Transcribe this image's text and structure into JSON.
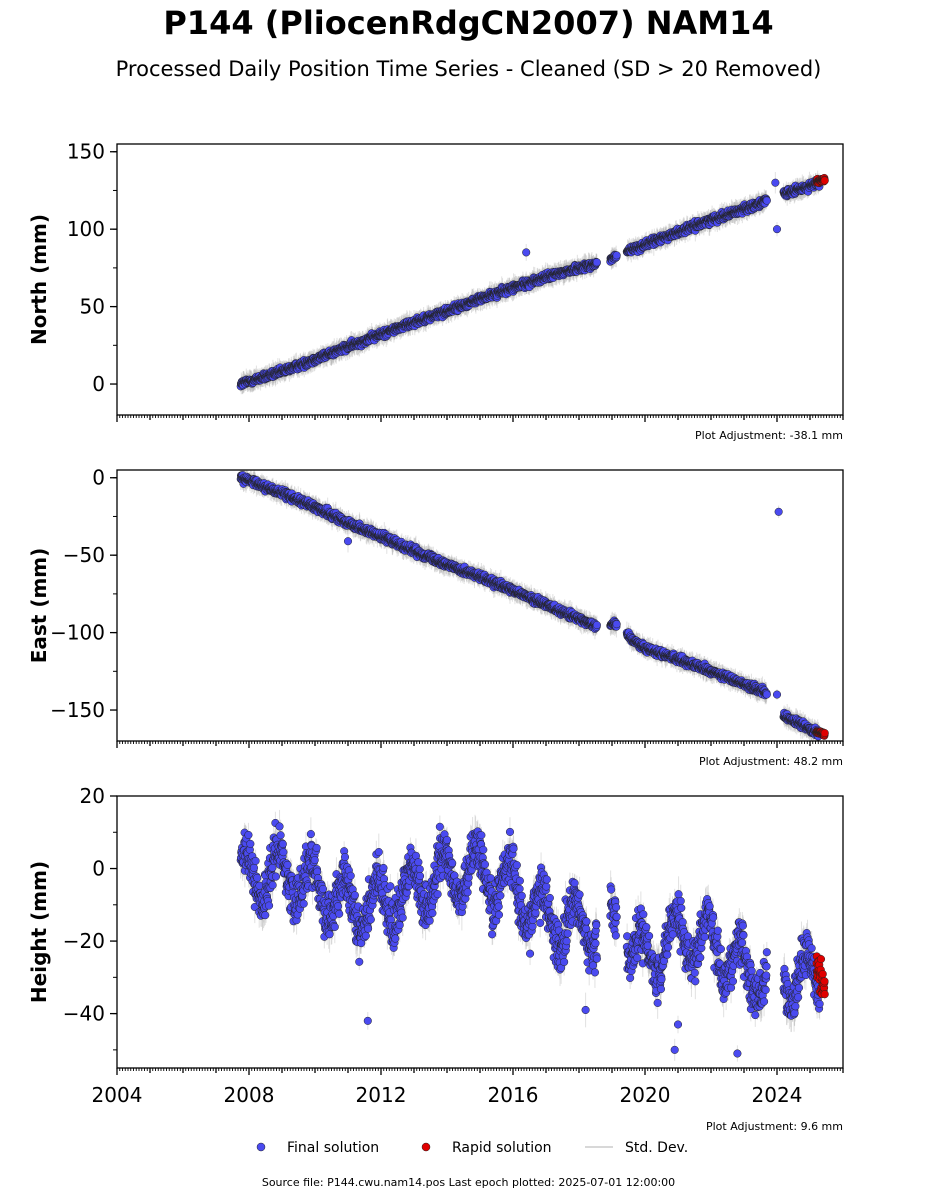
{
  "page": {
    "title": "P144 (PliocenRdgCN2007) NAM14",
    "subtitle": "Processed Daily Position Time Series - Cleaned (SD > 20 Removed)",
    "footer": "Source file: P144.cwu.nam14.pos  Last epoch plotted: 2025-07-01 12:00:00"
  },
  "legend": {
    "final": "Final solution",
    "rapid": "Rapid solution",
    "std": "Std. Dev."
  },
  "colors": {
    "final": "#4a4af0",
    "rapid": "#e00000",
    "std": "#aaaaaa"
  },
  "chart_data": [
    {
      "type": "scatter",
      "ylabel": "North (mm)",
      "xlim": [
        2004,
        2026
      ],
      "ylim": [
        -20,
        155
      ],
      "yticks": [
        0,
        50,
        100,
        150
      ],
      "xticks": [
        2004,
        2008,
        2012,
        2016,
        2020,
        2024
      ],
      "show_xtick_labels": false,
      "adjustment": "Plot Adjustment: -38.1 mm",
      "series": [
        {
          "kind": "final",
          "trend": [
            [
              2007.75,
              0
            ],
            [
              2009,
              8
            ],
            [
              2010,
              16
            ],
            [
              2011,
              24
            ],
            [
              2012,
              32
            ],
            [
              2013,
              40
            ],
            [
              2014,
              47
            ],
            [
              2015,
              55
            ],
            [
              2016,
              62
            ],
            [
              2017,
              69
            ],
            [
              2018,
              75
            ],
            [
              2018.8,
              79
            ],
            [
              2019.5,
              86
            ],
            [
              2020,
              90
            ],
            [
              2021,
              98
            ],
            [
              2022,
              106
            ],
            [
              2023,
              113
            ],
            [
              2024,
              121
            ],
            [
              2025.3,
              130
            ]
          ],
          "gaps": [
            [
              2018.55,
              2018.95
            ],
            [
              2019.15,
              2019.45
            ],
            [
              2023.7,
              2024.2
            ]
          ],
          "scatter": 1.6,
          "outliers": [
            [
              2016.4,
              85
            ],
            [
              2024.0,
              100
            ],
            [
              2023.95,
              130
            ]
          ]
        },
        {
          "kind": "rapid",
          "range": [
            2025.2,
            2025.45
          ],
          "trend": [
            [
              2025.2,
              131
            ],
            [
              2025.45,
              132
            ]
          ],
          "scatter": 0.8
        }
      ]
    },
    {
      "type": "scatter",
      "ylabel": "East (mm)",
      "xlim": [
        2004,
        2026
      ],
      "ylim": [
        -170,
        5
      ],
      "yticks": [
        0,
        -50,
        -100,
        -150
      ],
      "xticks": [
        2004,
        2008,
        2012,
        2016,
        2020,
        2024
      ],
      "show_xtick_labels": false,
      "adjustment": "Plot Adjustment: 48.2 mm",
      "series": [
        {
          "kind": "final",
          "trend": [
            [
              2007.75,
              0
            ],
            [
              2009,
              -10
            ],
            [
              2010,
              -19
            ],
            [
              2011,
              -29
            ],
            [
              2012,
              -38
            ],
            [
              2013,
              -47
            ],
            [
              2014,
              -56
            ],
            [
              2015,
              -64
            ],
            [
              2016,
              -73
            ],
            [
              2017,
              -82
            ],
            [
              2018,
              -91
            ],
            [
              2018.8,
              -98
            ],
            [
              2019,
              -94
            ],
            [
              2019.4,
              -99
            ],
            [
              2019.6,
              -104
            ],
            [
              2020,
              -110
            ],
            [
              2021,
              -117
            ],
            [
              2022,
              -125
            ],
            [
              2023,
              -133
            ],
            [
              2024,
              -142
            ],
            [
              2024.2,
              -154
            ],
            [
              2025.3,
              -165
            ]
          ],
          "gaps": [
            [
              2018.55,
              2018.95
            ],
            [
              2019.15,
              2019.45
            ],
            [
              2023.7,
              2024.2
            ]
          ],
          "scatter": 1.6,
          "outliers": [
            [
              2011.0,
              -41
            ],
            [
              2024.05,
              -22
            ],
            [
              2024.0,
              -140
            ]
          ]
        },
        {
          "kind": "rapid",
          "range": [
            2025.2,
            2025.45
          ],
          "trend": [
            [
              2025.2,
              -164
            ],
            [
              2025.45,
              -166
            ]
          ],
          "scatter": 0.8
        }
      ]
    },
    {
      "type": "scatter",
      "ylabel": "Height (mm)",
      "xlim": [
        2004,
        2026
      ],
      "ylim": [
        -55,
        20
      ],
      "yticks": [
        20,
        0,
        -20,
        -40
      ],
      "xticks": [
        2004,
        2008,
        2012,
        2016,
        2020,
        2024
      ],
      "show_xtick_labels": true,
      "adjustment": "Plot Adjustment: 9.6 mm",
      "series": [
        {
          "kind": "final",
          "seasonal": {
            "amplitude": 7,
            "phase": 0.35
          },
          "trend": [
            [
              2007.75,
              -3
            ],
            [
              2009,
              -1
            ],
            [
              2010,
              -5
            ],
            [
              2011,
              -10
            ],
            [
              2012,
              -10
            ],
            [
              2013,
              -6
            ],
            [
              2014,
              -2
            ],
            [
              2015,
              -1
            ],
            [
              2016,
              -5
            ],
            [
              2017,
              -14
            ],
            [
              2018,
              -16
            ],
            [
              2019,
              -15
            ],
            [
              2020,
              -25
            ],
            [
              2021,
              -18
            ],
            [
              2022,
              -20
            ],
            [
              2023,
              -28
            ],
            [
              2024,
              -30
            ],
            [
              2025.3,
              -30
            ]
          ],
          "gaps": [
            [
              2018.55,
              2018.95
            ],
            [
              2019.15,
              2019.45
            ],
            [
              2023.7,
              2024.2
            ]
          ],
          "scatter": 4.5,
          "outliers": [
            [
              2011.6,
              -42
            ],
            [
              2018.2,
              -39
            ],
            [
              2021.0,
              -43
            ],
            [
              2020.9,
              -50
            ],
            [
              2022.8,
              -51
            ]
          ]
        },
        {
          "kind": "rapid",
          "range": [
            2025.2,
            2025.45
          ],
          "trend": [
            [
              2025.2,
              -27
            ],
            [
              2025.45,
              -33
            ]
          ],
          "scatter": 3
        }
      ]
    }
  ]
}
